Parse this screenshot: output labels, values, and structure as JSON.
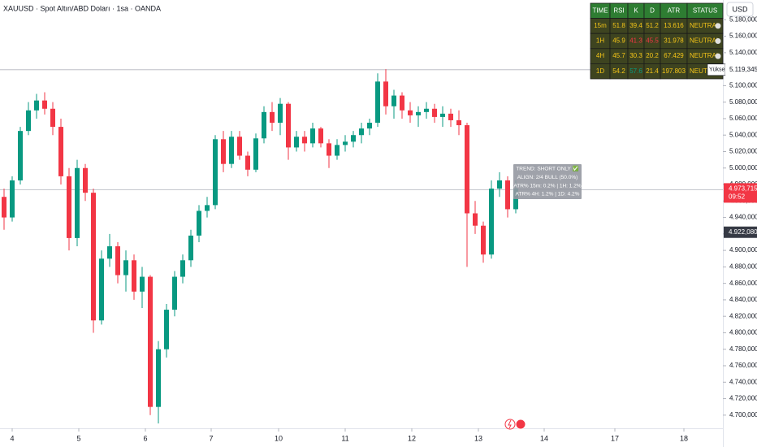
{
  "chart_data": {
    "type": "candlestick",
    "title": "XAUUSD · Spot Altın/ABD Doları · 1sa · OANDA",
    "currency": "USD",
    "up_color": "#089981",
    "down_color": "#f23645",
    "x": [
      0,
      1,
      2,
      3,
      4,
      5,
      6,
      7,
      8,
      9,
      10,
      11,
      12,
      13,
      14,
      15,
      16,
      17,
      18,
      19,
      20,
      21,
      22,
      23,
      24,
      25,
      26,
      27,
      28,
      29,
      30,
      31,
      32,
      33,
      34,
      35,
      36,
      37,
      38,
      39,
      40,
      41,
      42,
      43,
      44,
      45,
      46,
      47,
      48,
      49,
      50,
      51,
      52,
      53,
      54,
      55,
      56,
      57,
      58,
      59,
      60,
      61,
      62,
      63
    ],
    "open": [
      4965,
      4940,
      4985,
      5045,
      5070,
      5082,
      5072,
      5050,
      4990,
      4915,
      5000,
      4970,
      4815,
      4890,
      4905,
      4870,
      4888,
      4850,
      4868,
      4710,
      4780,
      4828,
      4868,
      4888,
      4918,
      4948,
      4955,
      5035,
      5005,
      5038,
      5015,
      4998,
      5036,
      5068,
      5055,
      5078,
      5025,
      5038,
      5030,
      5048,
      5030,
      5015,
      5028,
      5032,
      5040,
      5048,
      5055,
      5105,
      5075,
      5088,
      5070,
      5064,
      5068,
      5072,
      5062,
      5066,
      5058,
      5052,
      4945,
      4930,
      4895,
      4975,
      4985,
      4950
    ],
    "high": [
      4975,
      4990,
      5050,
      5080,
      5090,
      5092,
      5080,
      5060,
      5000,
      5010,
      5005,
      4975,
      4900,
      4920,
      4910,
      4900,
      4895,
      4880,
      4870,
      4790,
      4835,
      4875,
      4895,
      4925,
      4955,
      4965,
      5040,
      5045,
      5045,
      5045,
      5020,
      5042,
      5075,
      5080,
      5085,
      5080,
      5045,
      5045,
      5055,
      5050,
      5035,
      5035,
      5040,
      5045,
      5055,
      5060,
      5115,
      5120,
      5095,
      5092,
      5080,
      5075,
      5080,
      5078,
      5075,
      5072,
      5070,
      5055,
      4960,
      4935,
      4985,
      4995,
      4990,
      4985
    ],
    "low": [
      4925,
      4935,
      4980,
      5040,
      5060,
      5065,
      5040,
      4980,
      4900,
      4905,
      4960,
      4800,
      4810,
      4880,
      4860,
      4850,
      4840,
      4830,
      4700,
      4690,
      4770,
      4820,
      4860,
      4880,
      4910,
      4940,
      4950,
      4995,
      5000,
      5010,
      4990,
      4995,
      5030,
      5045,
      5040,
      5010,
      5020,
      5020,
      5025,
      5025,
      5000,
      5010,
      5020,
      5025,
      5030,
      5040,
      5050,
      5065,
      5060,
      5060,
      5055,
      5050,
      5060,
      5055,
      5050,
      5050,
      5040,
      4880,
      4920,
      4885,
      4890,
      4965,
      4940,
      4945
    ],
    "close": [
      4940,
      4985,
      5045,
      5070,
      5082,
      5072,
      5050,
      4990,
      4915,
      5000,
      4970,
      4815,
      4890,
      4905,
      4870,
      4888,
      4850,
      4868,
      4710,
      4780,
      4828,
      4868,
      4888,
      4918,
      4948,
      4955,
      5035,
      5005,
      5038,
      5015,
      4998,
      5036,
      5068,
      5055,
      5078,
      5025,
      5038,
      5030,
      5048,
      5030,
      5015,
      5028,
      5032,
      5040,
      5048,
      5055,
      5105,
      5075,
      5088,
      5070,
      5064,
      5068,
      5072,
      5062,
      5066,
      5058,
      5052,
      4945,
      4930,
      4895,
      4975,
      4985,
      4950,
      4975
    ],
    "xlim": [
      -0.5,
      88.5
    ],
    "xticks": [
      {
        "value": 1,
        "label": "4"
      },
      {
        "value": 9.2,
        "label": "5"
      },
      {
        "value": 17.4,
        "label": "6"
      },
      {
        "value": 25.5,
        "label": "7"
      },
      {
        "value": 33.8,
        "label": "10"
      },
      {
        "value": 42,
        "label": "11"
      },
      {
        "value": 50.2,
        "label": "12"
      },
      {
        "value": 58.4,
        "label": "13"
      },
      {
        "value": 66.5,
        "label": "14"
      },
      {
        "value": 75.2,
        "label": "17"
      },
      {
        "value": 83.7,
        "label": "18"
      }
    ],
    "ylim": [
      4686,
      5204
    ],
    "yticks": [
      {
        "value": 4700,
        "label": "4.700,000"
      },
      {
        "value": 4720,
        "label": "4.720,000"
      },
      {
        "value": 4740,
        "label": "4.740,000"
      },
      {
        "value": 4760,
        "label": "4.760,000"
      },
      {
        "value": 4780,
        "label": "4.780,000"
      },
      {
        "value": 4800,
        "label": "4.800,000"
      },
      {
        "value": 4820,
        "label": "4.820,000"
      },
      {
        "value": 4840,
        "label": "4.840,000"
      },
      {
        "value": 4860,
        "label": "4.860,000"
      },
      {
        "value": 4880,
        "label": "4.880,000"
      },
      {
        "value": 4900,
        "label": "4.900,000"
      },
      {
        "value": 4920,
        "label": "4.920,000"
      },
      {
        "value": 4940,
        "label": "4.940,000"
      },
      {
        "value": 4960,
        "label": "4.960,000"
      },
      {
        "value": 4980,
        "label": "4.980,000"
      },
      {
        "value": 5000,
        "label": "5.000,000"
      },
      {
        "value": 5020,
        "label": "5.020,000"
      },
      {
        "value": 5040,
        "label": "5.040,000"
      },
      {
        "value": 5060,
        "label": "5.060,000"
      },
      {
        "value": 5080,
        "label": "5.080,000"
      },
      {
        "value": 5100,
        "label": "5.100,000"
      },
      {
        "value": 5120,
        "label": "5.120,000"
      },
      {
        "value": 5140,
        "label": "5.140,000"
      },
      {
        "value": 5160,
        "label": "5.160,000"
      },
      {
        "value": 5180,
        "label": "5.180,000"
      }
    ],
    "high_line": {
      "value": 5119.345,
      "label": "5.119,345",
      "tag": "Yüksek"
    },
    "last_price": {
      "value": 4973.715,
      "label": "4.973,715",
      "time": "09:52"
    },
    "marker_price": {
      "value": 4922.08,
      "label": "4.922,080"
    },
    "annotation": [
      "TREND: SHORT ONLY ✅",
      "ALIGN: 2/4 BULL (50.0%)",
      "ATR% 15m: 0.2% | 1H: 1.2%",
      "ATR% 4H: 1.2% | 1D: 4.2%"
    ],
    "indicator_table": {
      "header": [
        "TIME",
        "RSI",
        "K",
        "D",
        "ATR",
        "STATUS"
      ],
      "rows": [
        [
          "15m",
          "51.8",
          "39.4",
          "51.2",
          "13.616",
          "NEUTRAL"
        ],
        [
          "1H",
          "45.9",
          "41.3",
          "45.5",
          "31.978",
          "NEUTRAL"
        ],
        [
          "4H",
          "45.7",
          "30.3",
          "20.2",
          "67.429",
          "NEUTRAL"
        ],
        [
          "1D",
          "54.2",
          "57.6",
          "21.4",
          "197.803",
          "NEUTRAL"
        ]
      ]
    }
  }
}
